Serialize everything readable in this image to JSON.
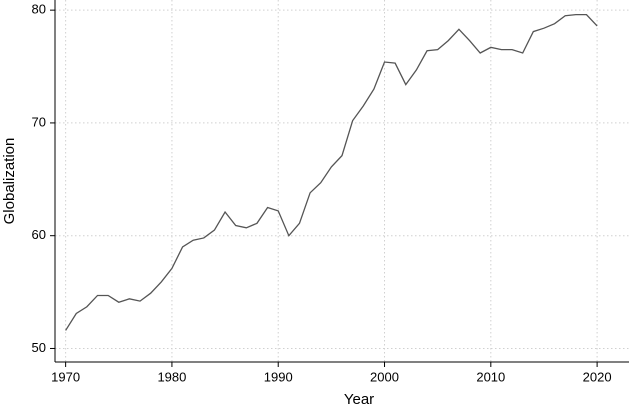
{
  "chart_data": {
    "type": "line",
    "x_label": "Year",
    "y_label": "Globalization",
    "x": [
      1970,
      1971,
      1972,
      1973,
      1974,
      1975,
      1976,
      1977,
      1978,
      1979,
      1980,
      1981,
      1982,
      1983,
      1984,
      1985,
      1986,
      1987,
      1988,
      1989,
      1990,
      1991,
      1992,
      1993,
      1994,
      1995,
      1996,
      1997,
      1998,
      1999,
      2000,
      2001,
      2002,
      2003,
      2004,
      2005,
      2006,
      2007,
      2008,
      2009,
      2010,
      2011,
      2012,
      2013,
      2014,
      2015,
      2016,
      2017,
      2018,
      2019,
      2020
    ],
    "series": [
      {
        "color": "#555555",
        "values": [
          51.6,
          53.1,
          53.7,
          54.7,
          54.7,
          54.1,
          54.4,
          54.2,
          54.9,
          55.9,
          57.1,
          59.0,
          59.6,
          59.8,
          60.5,
          62.1,
          60.9,
          60.7,
          61.1,
          62.5,
          62.2,
          60.0,
          61.1,
          63.8,
          64.7,
          66.1,
          67.1,
          70.2,
          71.5,
          73.0,
          75.4,
          75.3,
          73.4,
          74.7,
          76.4,
          76.5,
          77.3,
          78.3,
          77.3,
          76.2,
          76.7,
          76.5,
          76.5,
          76.2,
          78.1,
          78.4,
          78.8,
          79.5,
          79.6,
          79.6,
          78.6
        ]
      }
    ],
    "xlim": [
      1969,
      2023
    ],
    "ylim": [
      48.8,
      80.9
    ],
    "xticks": [
      1970,
      1980,
      1990,
      2000,
      2010,
      2020
    ],
    "yticks": [
      50,
      60,
      70,
      80
    ],
    "grid": true
  }
}
